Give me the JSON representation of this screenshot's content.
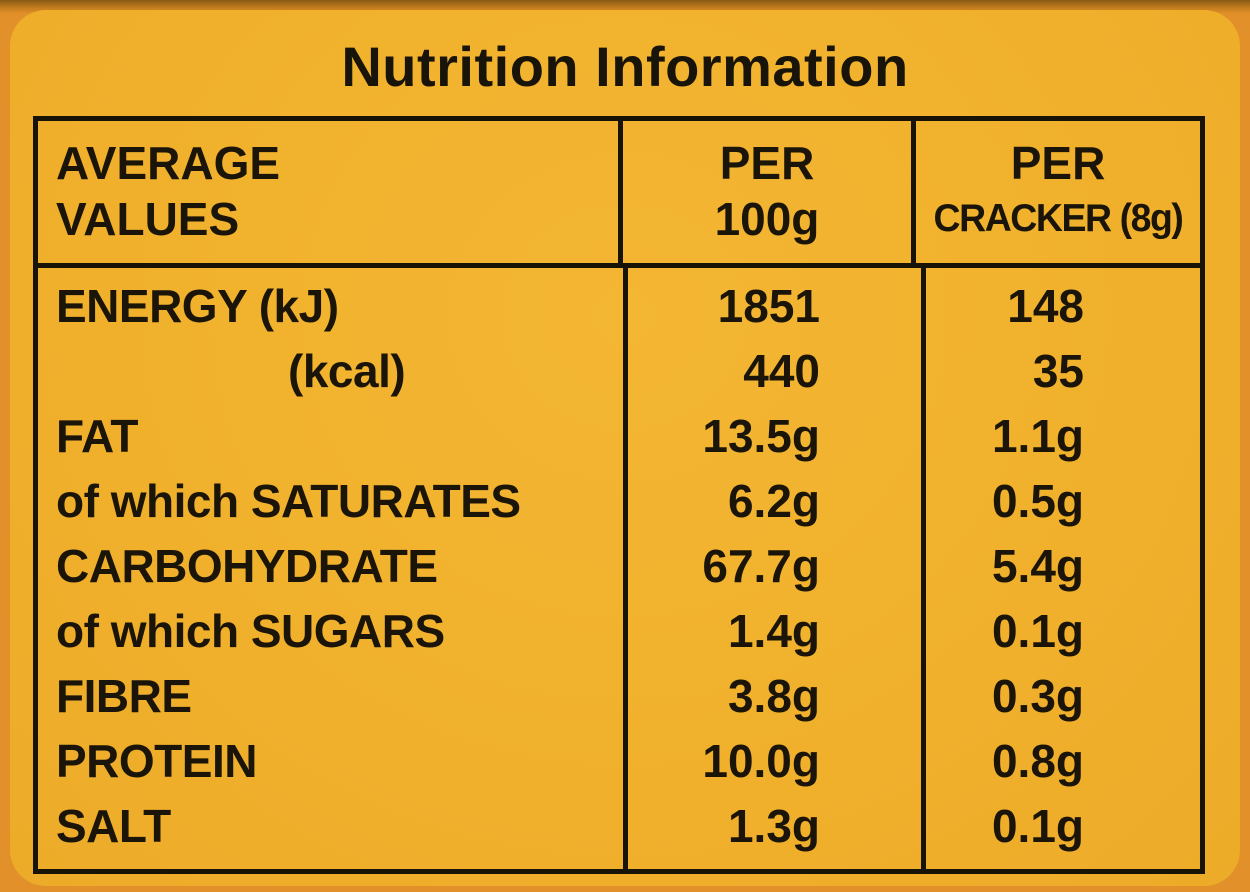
{
  "label": {
    "title": "Nutrition Information",
    "table": {
      "headers": {
        "col1": [
          "AVERAGE",
          "VALUES"
        ],
        "col2": [
          "PER",
          "100g"
        ],
        "col3": [
          "PER",
          "CRACKER (8g)"
        ]
      },
      "rows": [
        {
          "label": "ENERGY (kJ)",
          "per100": "1851",
          "perCracker": "148"
        },
        {
          "label": "(kcal)",
          "per100": "440",
          "perCracker": "35"
        },
        {
          "label": "FAT",
          "per100": "13.5g",
          "perCracker": "1.1g"
        },
        {
          "label": "of which SATURATES",
          "per100": "6.2g",
          "perCracker": "0.5g"
        },
        {
          "label": "CARBOHYDRATE",
          "per100": "67.7g",
          "perCracker": "5.4g"
        },
        {
          "label": "of which SUGARS",
          "per100": "1.4g",
          "perCracker": "0.1g"
        },
        {
          "label": "FIBRE",
          "per100": "3.8g",
          "perCracker": "0.3g"
        },
        {
          "label": "PROTEIN",
          "per100": "10.0g",
          "perCracker": "0.8g"
        },
        {
          "label": "SALT",
          "per100": "1.3g",
          "perCracker": "0.1g"
        }
      ]
    },
    "colors": {
      "panel_yellow": "#f0b02c",
      "background_orange": "#e2912a",
      "text_black": "#1a1508"
    }
  }
}
